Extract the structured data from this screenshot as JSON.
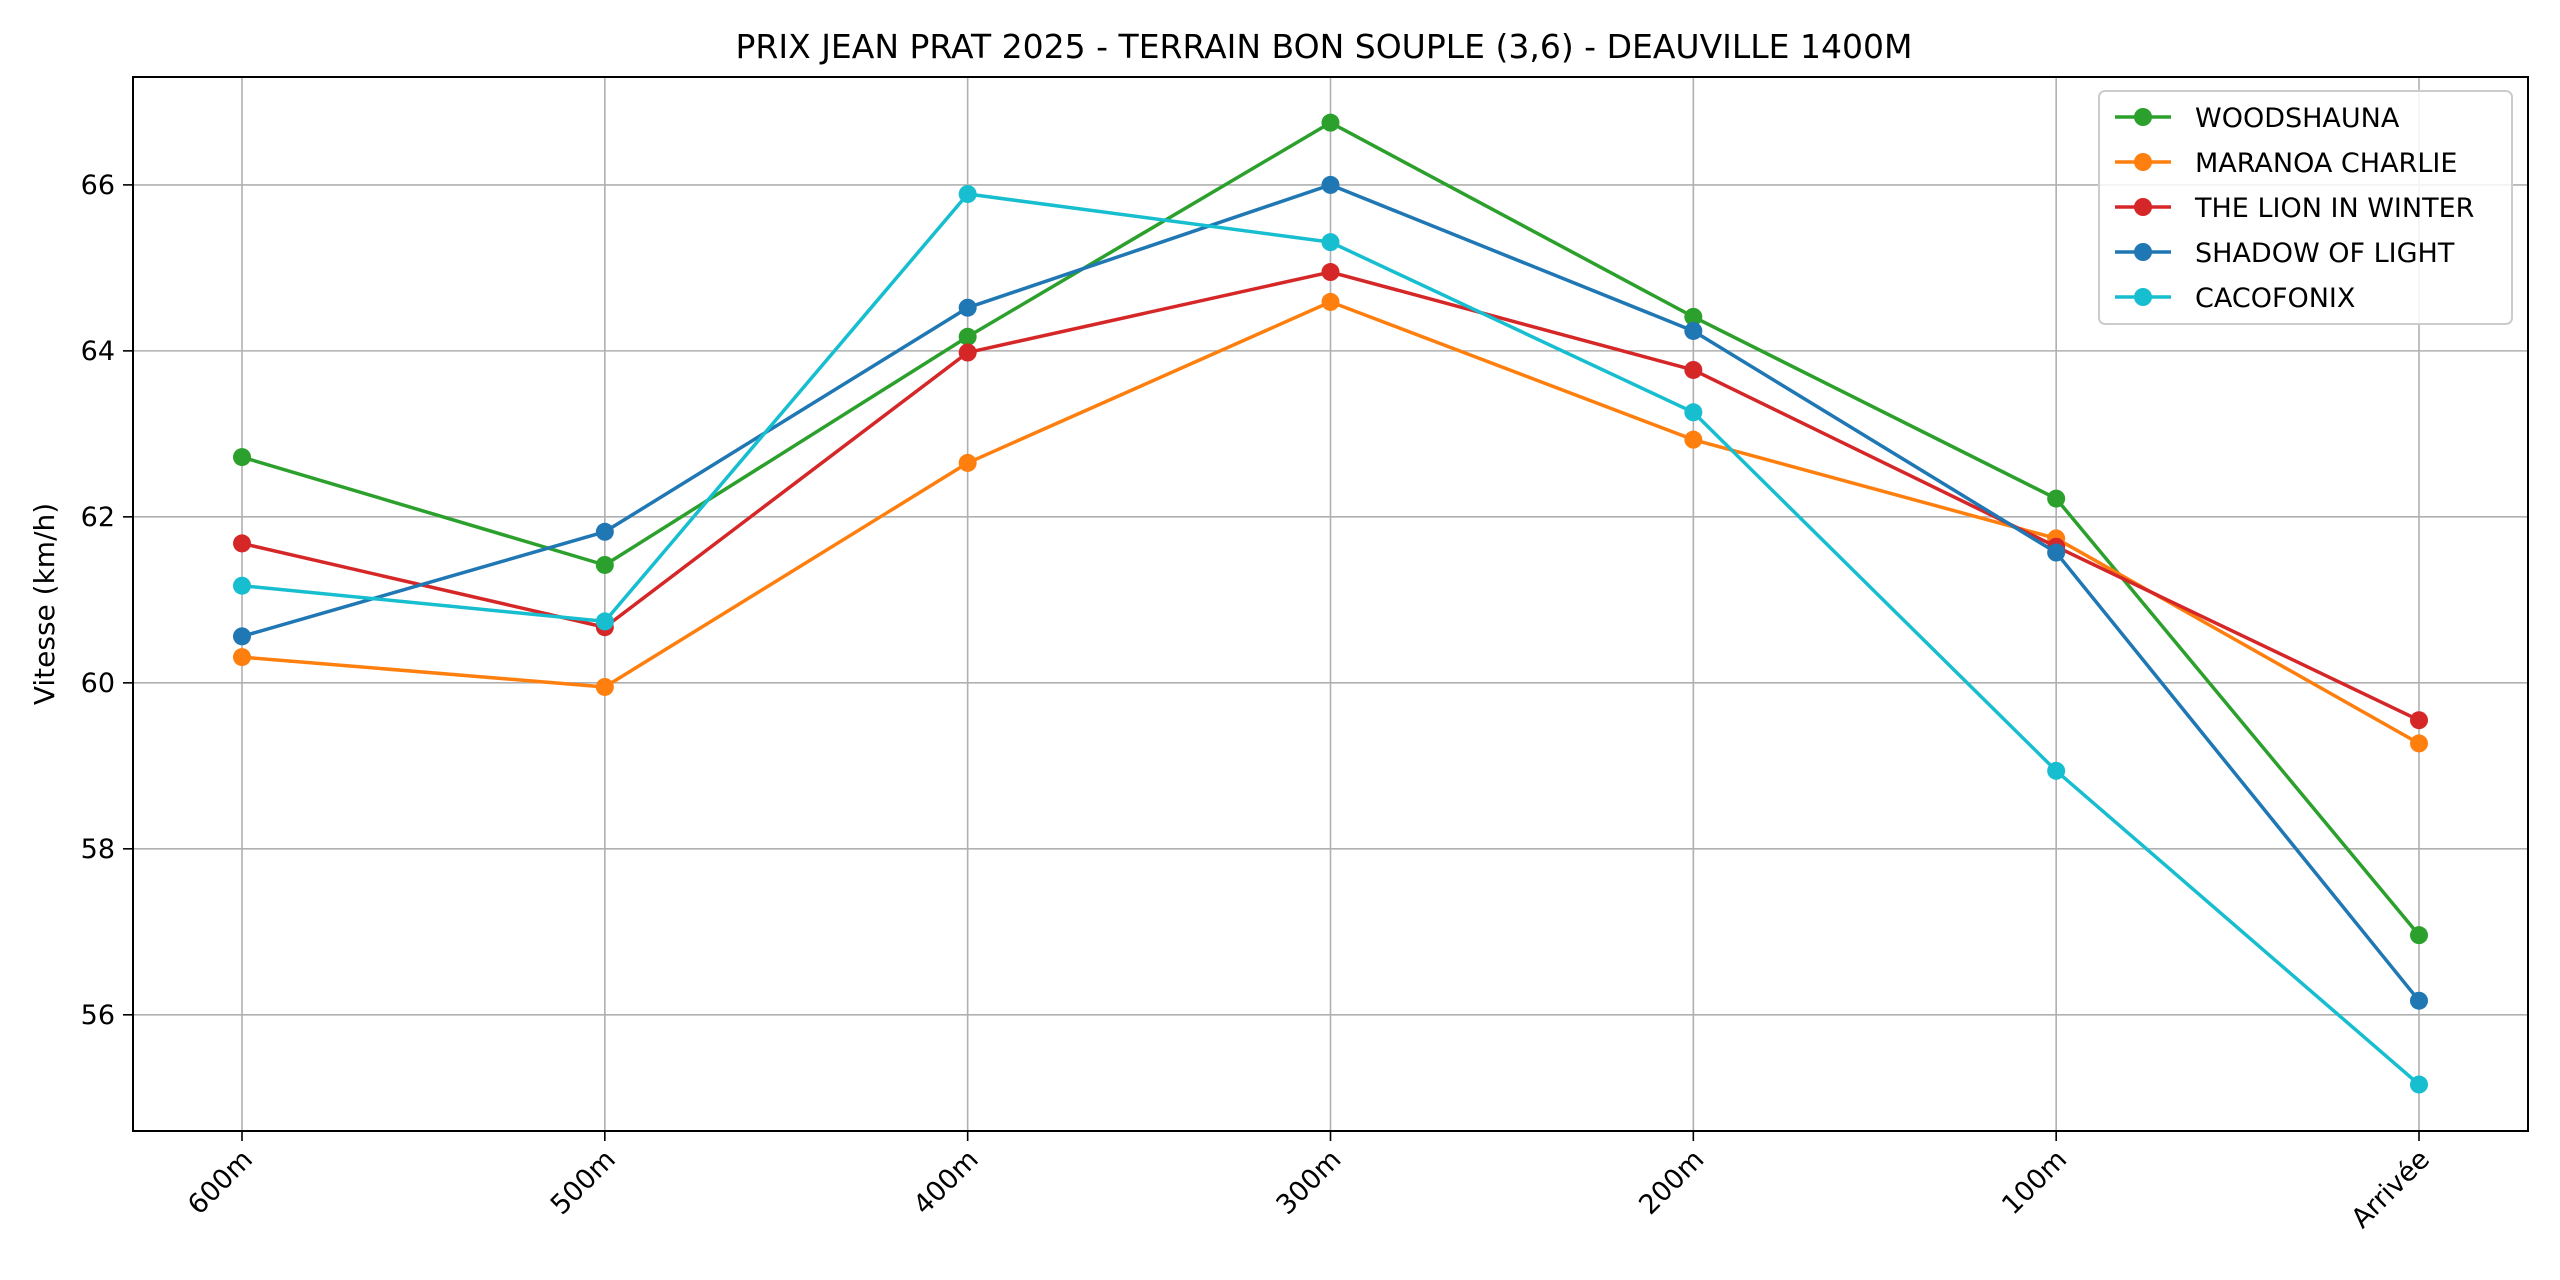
{
  "chart_data": {
    "type": "line",
    "title": "PRIX JEAN PRAT 2025 - TERRAIN BON SOUPLE  (3,6) - DEAUVILLE 1400M",
    "xlabel": "",
    "ylabel": "Vitesse (km/h)",
    "categories": [
      "600m",
      "500m",
      "400m",
      "300m",
      "200m",
      "100m",
      "Arrivée"
    ],
    "ylim": [
      54.6,
      67.3
    ],
    "yticks": [
      56,
      58,
      60,
      62,
      64,
      66
    ],
    "grid": true,
    "legend_position": "top-right",
    "series": [
      {
        "name": "WOODSHAUNA",
        "color": "#2ca02c",
        "values": [
          62.72,
          61.42,
          64.17,
          66.75,
          64.41,
          62.22,
          56.96
        ]
      },
      {
        "name": "MARANOA CHARLIE",
        "color": "#ff7f0e",
        "values": [
          60.31,
          59.95,
          62.65,
          64.59,
          62.93,
          61.74,
          59.27
        ]
      },
      {
        "name": "THE LION IN WINTER",
        "color": "#d62728",
        "values": [
          61.68,
          60.67,
          63.98,
          64.95,
          63.77,
          61.64,
          59.55
        ]
      },
      {
        "name": "SHADOW OF LIGHT",
        "color": "#1f77b4",
        "values": [
          60.56,
          61.82,
          64.52,
          66.0,
          64.24,
          61.57,
          56.17
        ]
      },
      {
        "name": "CACOFONIX",
        "color": "#17becf",
        "values": [
          61.17,
          60.74,
          65.89,
          65.31,
          63.26,
          58.94,
          55.16
        ]
      }
    ]
  }
}
